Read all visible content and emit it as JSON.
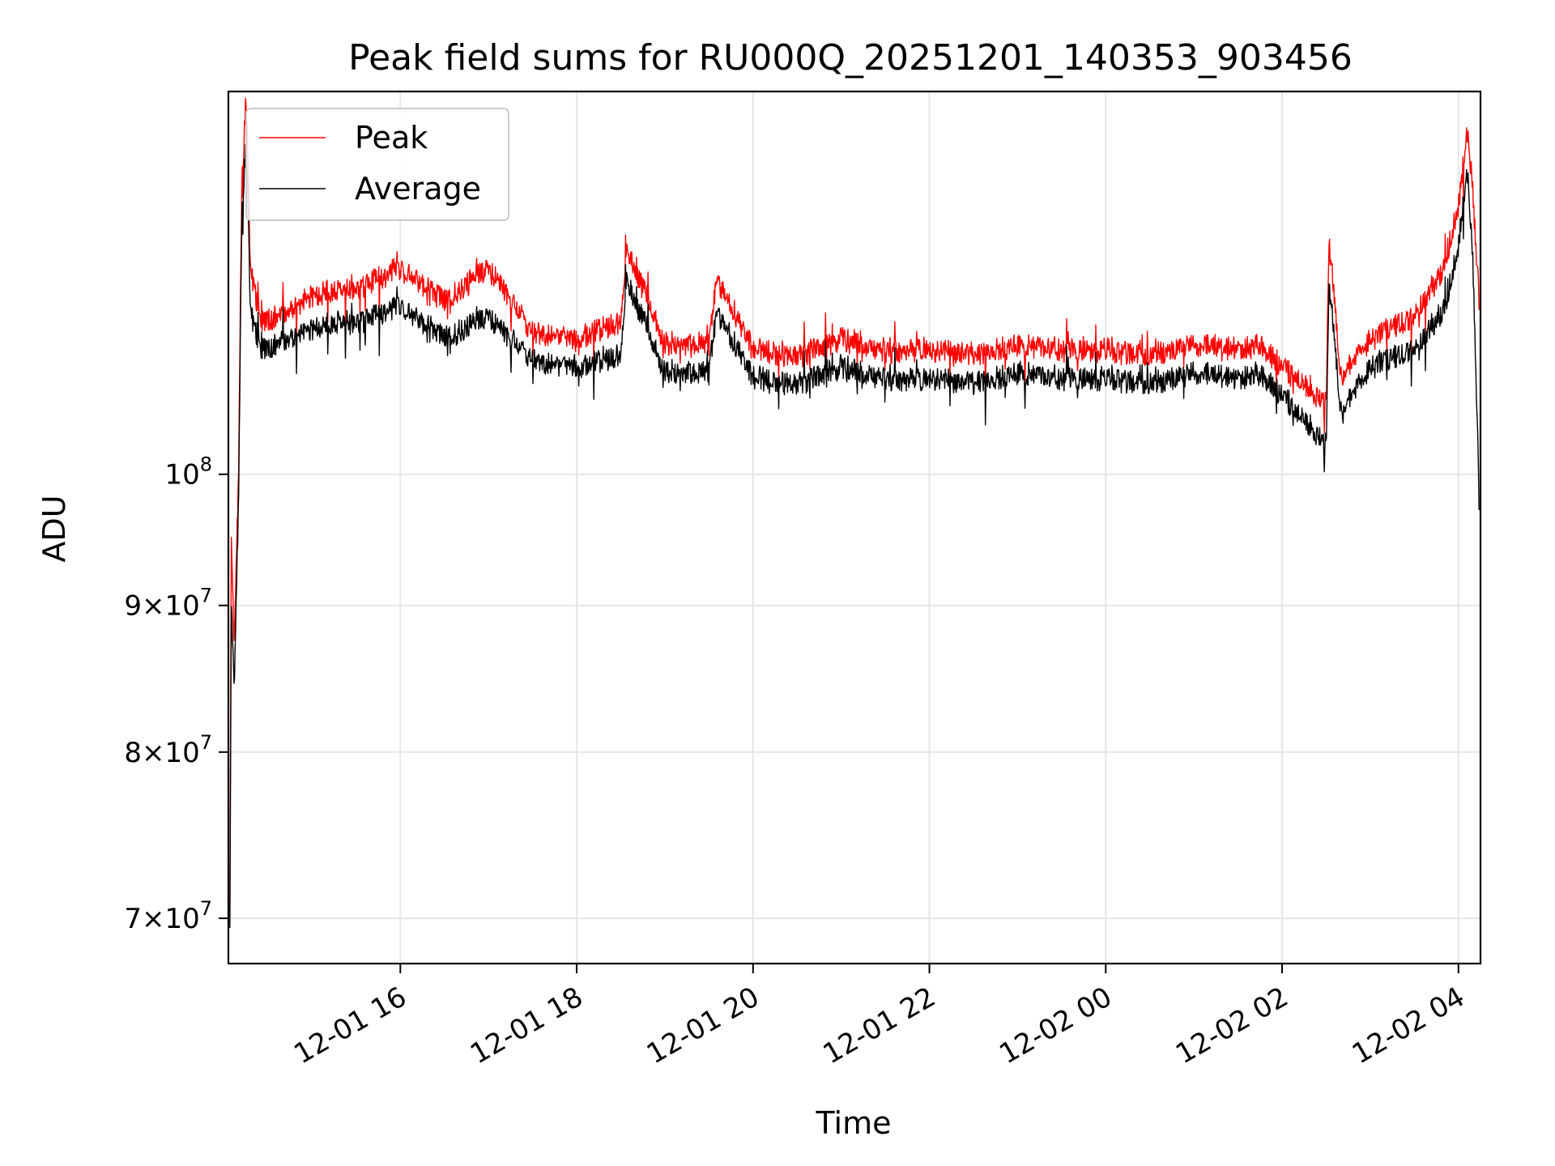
{
  "chart_data": {
    "type": "line",
    "title": "Peak field sums for RU000Q_20251201_140353_903456",
    "xlabel": "Time",
    "ylabel": "ADU",
    "x_ticks": [
      "12-01 16",
      "12-01 18",
      "12-01 20",
      "12-01 22",
      "12-02 00",
      "12-02 02",
      "12-02 04"
    ],
    "y_ticks": [
      {
        "value": 70000000,
        "base": "7",
        "op": "×",
        "exp_base": "10",
        "exp": "7"
      },
      {
        "value": 80000000,
        "base": "8",
        "op": "×",
        "exp_base": "10",
        "exp": "7"
      },
      {
        "value": 90000000,
        "base": "9",
        "op": "×",
        "exp_base": "10",
        "exp": "7"
      },
      {
        "value": 100000000,
        "base": "",
        "op": "",
        "exp_base": "10",
        "exp": "8"
      }
    ],
    "y_scale": "log",
    "xlim": [
      "2025-12-01 14:03",
      "2025-12-02 04:15"
    ],
    "ylim": [
      67500000,
      136000000
    ],
    "grid": true,
    "legend_position": "upper-left",
    "series": [
      {
        "name": "Peak",
        "color": "#ff0000",
        "points": [
          [
            "12-01 14:04",
            70000000
          ],
          [
            "12-01 14:05",
            95000000
          ],
          [
            "12-01 14:07",
            87000000
          ],
          [
            "12-01 14:10",
            100000000
          ],
          [
            "12-01 14:12",
            125000000
          ],
          [
            "12-01 14:15",
            136000000
          ],
          [
            "12-01 14:18",
            118000000
          ],
          [
            "12-01 14:25",
            113000000
          ],
          [
            "12-01 14:45",
            114000000
          ],
          [
            "12-01 15:00",
            115500000
          ],
          [
            "12-01 15:30",
            116000000
          ],
          [
            "12-01 16:00",
            118000000
          ],
          [
            "12-01 16:30",
            115000000
          ],
          [
            "12-01 17:00",
            118000000
          ],
          [
            "12-01 17:30",
            112000000
          ],
          [
            "12-01 18:00",
            111500000
          ],
          [
            "12-01 18:30",
            113000000
          ],
          [
            "12-01 18:34",
            120000000
          ],
          [
            "12-01 19:00",
            111000000
          ],
          [
            "12-01 19:30",
            111000000
          ],
          [
            "12-01 19:35",
            117000000
          ],
          [
            "12-01 20:00",
            110500000
          ],
          [
            "12-01 20:30",
            110000000
          ],
          [
            "12-01 21:00",
            111500000
          ],
          [
            "12-01 21:30",
            110500000
          ],
          [
            "12-01 22:00",
            110500000
          ],
          [
            "12-01 22:30",
            110000000
          ],
          [
            "12-01 23:00",
            111000000
          ],
          [
            "12-01 23:30",
            110500000
          ],
          [
            "12-02 00:00",
            110500000
          ],
          [
            "12-02 00:30",
            110000000
          ],
          [
            "12-02 01:00",
            111000000
          ],
          [
            "12-02 01:30",
            110500000
          ],
          [
            "12-02 01:45",
            111000000
          ],
          [
            "12-02 02:00",
            109000000
          ],
          [
            "12-02 02:15",
            107500000
          ],
          [
            "12-02 02:30",
            106000000
          ],
          [
            "12-02 02:32",
            121000000
          ],
          [
            "12-02 02:40",
            108000000
          ],
          [
            "12-02 03:00",
            111500000
          ],
          [
            "12-02 03:30",
            113500000
          ],
          [
            "12-02 03:50",
            118000000
          ],
          [
            "12-02 04:00",
            124000000
          ],
          [
            "12-02 04:06",
            132000000
          ],
          [
            "12-02 04:10",
            125000000
          ],
          [
            "12-02 04:14",
            115000000
          ]
        ]
      },
      {
        "name": "Average",
        "color": "#000000",
        "points": [
          [
            "12-01 14:04",
            69500000
          ],
          [
            "12-01 14:05",
            90000000
          ],
          [
            "12-01 14:07",
            84000000
          ],
          [
            "12-01 14:10",
            98000000
          ],
          [
            "12-01 14:12",
            122000000
          ],
          [
            "12-01 14:15",
            131000000
          ],
          [
            "12-01 14:18",
            114000000
          ],
          [
            "12-01 14:25",
            110500000
          ],
          [
            "12-01 14:45",
            111500000
          ],
          [
            "12-01 15:00",
            112500000
          ],
          [
            "12-01 15:30",
            113000000
          ],
          [
            "12-01 16:00",
            114500000
          ],
          [
            "12-01 16:30",
            111500000
          ],
          [
            "12-01 17:00",
            113500000
          ],
          [
            "12-01 17:30",
            109500000
          ],
          [
            "12-01 18:00",
            109000000
          ],
          [
            "12-01 18:30",
            110000000
          ],
          [
            "12-01 18:34",
            117000000
          ],
          [
            "12-01 19:00",
            108500000
          ],
          [
            "12-01 19:30",
            108500000
          ],
          [
            "12-01 19:35",
            114000000
          ],
          [
            "12-01 20:00",
            108000000
          ],
          [
            "12-01 20:30",
            107500000
          ],
          [
            "12-01 21:00",
            109000000
          ],
          [
            "12-01 21:30",
            108000000
          ],
          [
            "12-01 22:00",
            108000000
          ],
          [
            "12-01 22:30",
            107500000
          ],
          [
            "12-01 23:00",
            108500000
          ],
          [
            "12-01 23:30",
            108000000
          ],
          [
            "12-02 00:00",
            108000000
          ],
          [
            "12-02 00:30",
            107500000
          ],
          [
            "12-02 01:00",
            108500000
          ],
          [
            "12-02 01:30",
            108000000
          ],
          [
            "12-02 01:45",
            108500000
          ],
          [
            "12-02 02:00",
            106500000
          ],
          [
            "12-02 02:15",
            104500000
          ],
          [
            "12-02 02:30",
            102500000
          ],
          [
            "12-02 02:32",
            117000000
          ],
          [
            "12-02 02:40",
            105000000
          ],
          [
            "12-02 03:00",
            109000000
          ],
          [
            "12-02 03:30",
            110500000
          ],
          [
            "12-02 03:50",
            114000000
          ],
          [
            "12-02 04:00",
            120000000
          ],
          [
            "12-02 04:06",
            128000000
          ],
          [
            "12-02 04:10",
            118000000
          ],
          [
            "12-02 04:14",
            98000000
          ]
        ]
      }
    ]
  }
}
